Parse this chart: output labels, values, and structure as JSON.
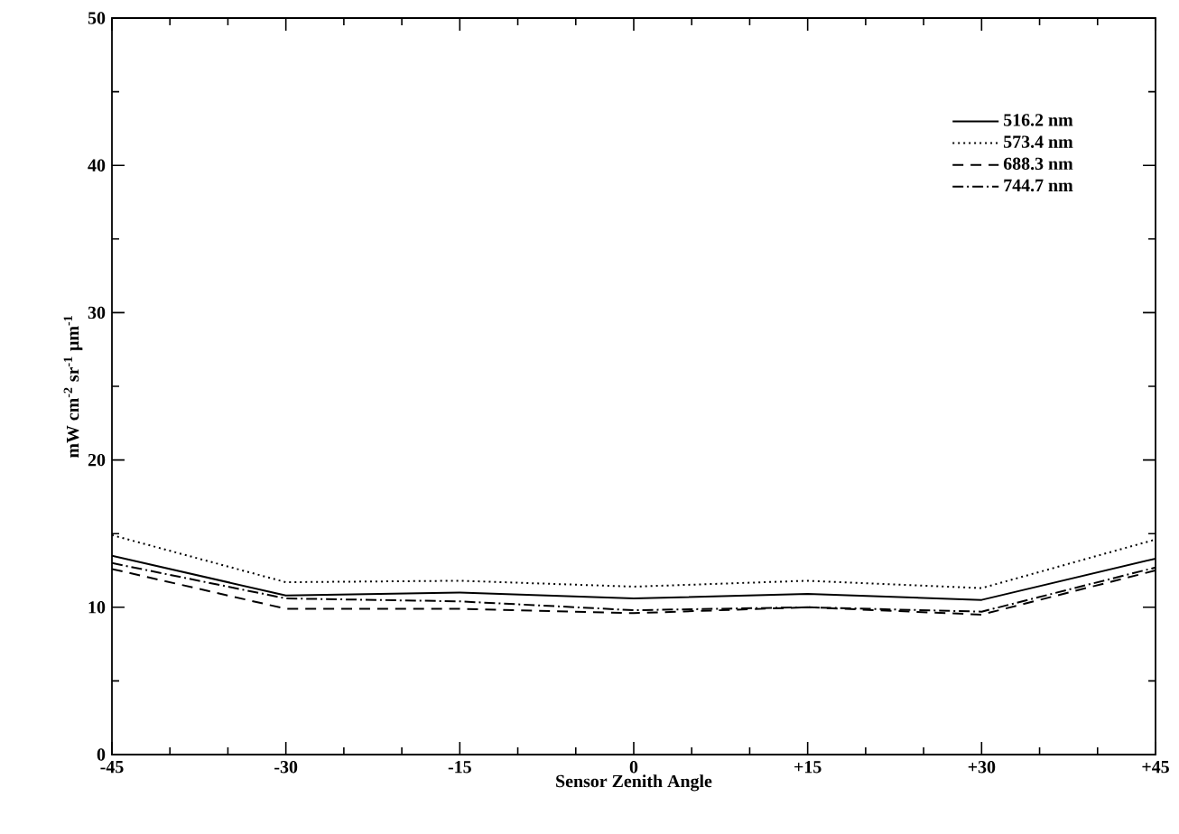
{
  "chart_data": {
    "type": "line",
    "xlabel": "Sensor Zenith Angle",
    "ylabel": "mW cm$^{-2}$ sr$^{-1}$ μm$^{-1}$",
    "x": [
      -45,
      -30,
      -15,
      0,
      15,
      30,
      45
    ],
    "xlim": [
      -45,
      45
    ],
    "ylim": [
      0,
      50
    ],
    "xticks": [
      -45,
      -30,
      -15,
      0,
      {
        "value": 15,
        "label": "+15"
      },
      {
        "value": 30,
        "label": "+30"
      },
      {
        "value": 45,
        "label": "+45"
      }
    ],
    "yticks": [
      0,
      10,
      20,
      30,
      40,
      50
    ],
    "legend": "top right",
    "grid": false,
    "marker": "none",
    "series": [
      {
        "name": "516.2 nm",
        "color": "#000000",
        "line_style": "solid",
        "values": [
          13.5,
          10.8,
          11.0,
          10.6,
          10.9,
          10.5,
          13.3
        ]
      },
      {
        "name": "573.4 nm",
        "color": "#000000",
        "line_style": "dotted",
        "values": [
          14.9,
          11.7,
          11.8,
          11.4,
          11.8,
          11.3,
          14.6
        ]
      },
      {
        "name": "688.3 nm",
        "color": "#000000",
        "line_style": "dashed",
        "values": [
          12.6,
          9.9,
          9.9,
          9.6,
          10.0,
          9.5,
          12.5
        ]
      },
      {
        "name": "744.7 nm",
        "color": "#000000",
        "line_style": "dashdot",
        "values": [
          13.0,
          10.6,
          10.4,
          9.8,
          10.0,
          9.7,
          12.7
        ]
      }
    ]
  }
}
